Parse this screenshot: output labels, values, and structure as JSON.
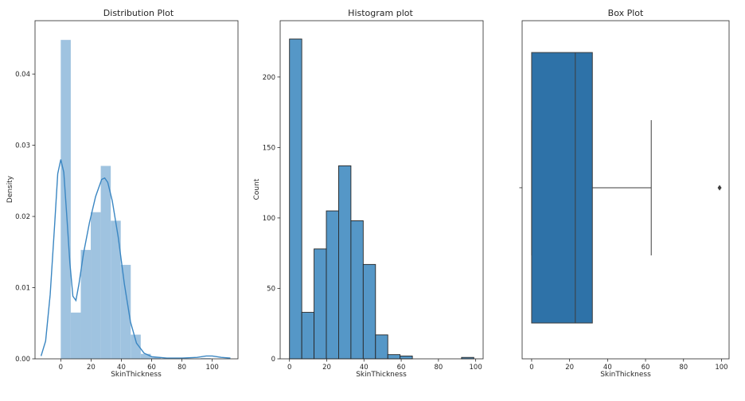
{
  "chart_data": [
    {
      "type": "bar",
      "subtype": "distplot",
      "title": "Distribution Plot",
      "xlabel": "SkinThickness",
      "ylabel": "Density",
      "xlim": [
        -17,
        117
      ],
      "ylim": [
        0,
        0.0475
      ],
      "xticks": [
        0,
        20,
        40,
        60,
        80,
        100
      ],
      "yticks": [
        0.0,
        0.01,
        0.02,
        0.03,
        0.04
      ],
      "ytick_labels": [
        "0.00",
        "0.01",
        "0.02",
        "0.03",
        "0.04"
      ],
      "bar_color": "#9fc3e0",
      "line_color": "#3a86c2",
      "bins": [
        {
          "x0": 0,
          "x1": 6.6,
          "value": 0.0448
        },
        {
          "x0": 6.6,
          "x1": 13.2,
          "value": 0.0065
        },
        {
          "x0": 13.2,
          "x1": 19.8,
          "value": 0.0153
        },
        {
          "x0": 19.8,
          "x1": 26.4,
          "value": 0.0206
        },
        {
          "x0": 26.4,
          "x1": 33.0,
          "value": 0.0271
        },
        {
          "x0": 33.0,
          "x1": 39.6,
          "value": 0.0194
        },
        {
          "x0": 39.6,
          "x1": 46.2,
          "value": 0.0132
        },
        {
          "x0": 46.2,
          "x1": 52.8,
          "value": 0.0034
        },
        {
          "x0": 52.8,
          "x1": 59.4,
          "value": 0.0007
        },
        {
          "x0": 59.4,
          "x1": 66.0,
          "value": 0.0002
        },
        {
          "x0": 92.4,
          "x1": 99.0,
          "value": 0.0001
        }
      ],
      "kde": [
        {
          "x": -13,
          "y": 0.0004
        },
        {
          "x": -10,
          "y": 0.0025
        },
        {
          "x": -7,
          "y": 0.009
        },
        {
          "x": -4,
          "y": 0.019
        },
        {
          "x": -2,
          "y": 0.026
        },
        {
          "x": 0,
          "y": 0.028
        },
        {
          "x": 2,
          "y": 0.0262
        },
        {
          "x": 4,
          "y": 0.02
        },
        {
          "x": 6,
          "y": 0.0135
        },
        {
          "x": 8,
          "y": 0.0088
        },
        {
          "x": 10,
          "y": 0.0082
        },
        {
          "x": 12,
          "y": 0.0105
        },
        {
          "x": 15,
          "y": 0.0148
        },
        {
          "x": 19,
          "y": 0.0192
        },
        {
          "x": 23,
          "y": 0.0228
        },
        {
          "x": 27,
          "y": 0.0252
        },
        {
          "x": 29,
          "y": 0.0254
        },
        {
          "x": 31,
          "y": 0.0248
        },
        {
          "x": 34,
          "y": 0.0222
        },
        {
          "x": 38,
          "y": 0.017
        },
        {
          "x": 42,
          "y": 0.0105
        },
        {
          "x": 46,
          "y": 0.0052
        },
        {
          "x": 50,
          "y": 0.0022
        },
        {
          "x": 55,
          "y": 0.0008
        },
        {
          "x": 60,
          "y": 0.0003
        },
        {
          "x": 70,
          "y": 0.0001
        },
        {
          "x": 80,
          "y": 0.0001
        },
        {
          "x": 90,
          "y": 0.0002
        },
        {
          "x": 96,
          "y": 0.0004
        },
        {
          "x": 100,
          "y": 0.0004
        },
        {
          "x": 106,
          "y": 0.0002
        },
        {
          "x": 112,
          "y": 0.0001
        }
      ]
    },
    {
      "type": "bar",
      "subtype": "histogram",
      "title": "Histogram plot",
      "xlabel": "SkinThickness",
      "ylabel": "Count",
      "xlim": [
        -5,
        104
      ],
      "ylim": [
        0,
        240
      ],
      "xticks": [
        0,
        20,
        40,
        60,
        80,
        100
      ],
      "yticks": [
        0,
        50,
        100,
        150,
        200
      ],
      "bar_color": "#5597c7",
      "bins": [
        {
          "x0": 0,
          "x1": 6.6,
          "value": 227
        },
        {
          "x0": 6.6,
          "x1": 13.2,
          "value": 33
        },
        {
          "x0": 13.2,
          "x1": 19.8,
          "value": 78
        },
        {
          "x0": 19.8,
          "x1": 26.4,
          "value": 105
        },
        {
          "x0": 26.4,
          "x1": 33.0,
          "value": 137
        },
        {
          "x0": 33.0,
          "x1": 39.6,
          "value": 98
        },
        {
          "x0": 39.6,
          "x1": 46.2,
          "value": 67
        },
        {
          "x0": 46.2,
          "x1": 52.8,
          "value": 17
        },
        {
          "x0": 52.8,
          "x1": 59.4,
          "value": 3
        },
        {
          "x0": 59.4,
          "x1": 66.0,
          "value": 2
        },
        {
          "x0": 66.0,
          "x1": 72.6,
          "value": 0
        },
        {
          "x0": 72.6,
          "x1": 79.2,
          "value": 0
        },
        {
          "x0": 79.2,
          "x1": 85.8,
          "value": 0
        },
        {
          "x0": 85.8,
          "x1": 92.4,
          "value": 0
        },
        {
          "x0": 92.4,
          "x1": 99.0,
          "value": 1
        }
      ]
    },
    {
      "type": "box",
      "title": "Box Plot",
      "xlabel": "SkinThickness",
      "xlim": [
        -5,
        104
      ],
      "xticks": [
        0,
        20,
        40,
        60,
        80,
        100
      ],
      "box_color": "#2e72a8",
      "stats": {
        "min": 0,
        "q1": 0,
        "median": 23,
        "q3": 32,
        "whisker_high": 63,
        "outliers": [
          99
        ]
      }
    }
  ]
}
